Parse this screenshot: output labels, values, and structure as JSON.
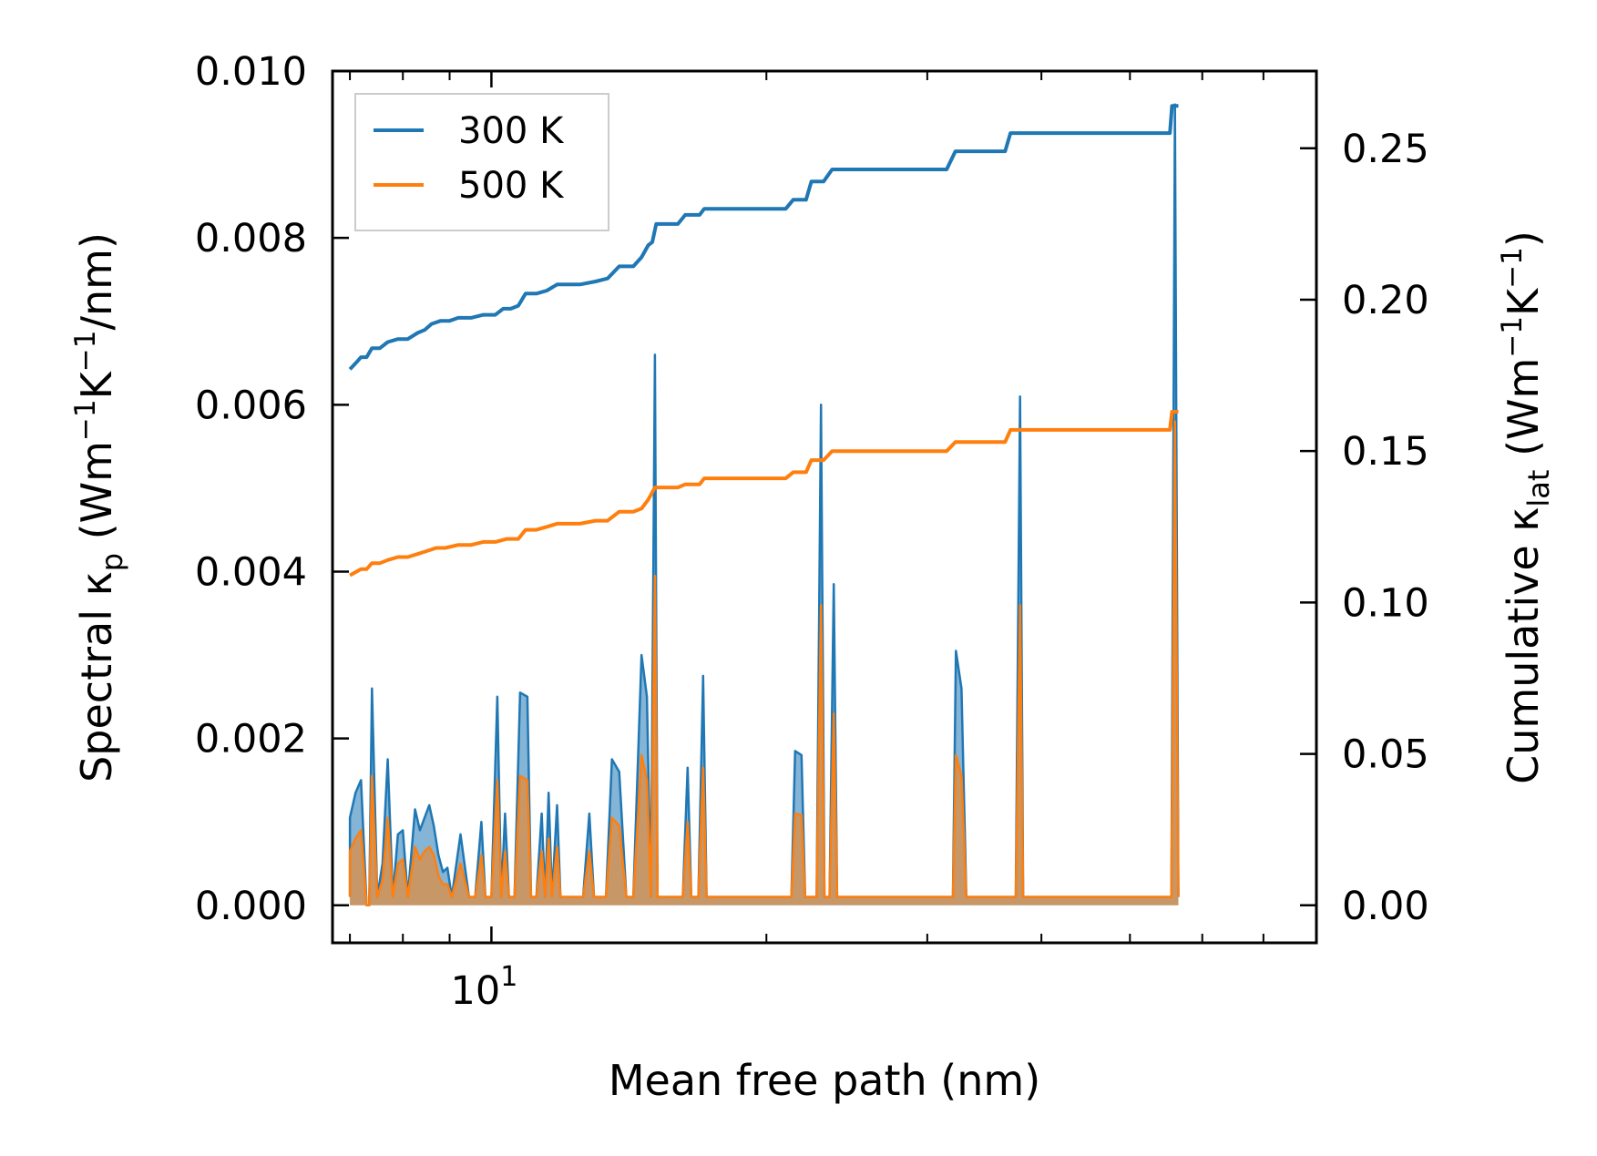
{
  "chart_data": {
    "type": "line",
    "xlabel": "Mean free path (nm)",
    "ylabel": {
      "main": "Spectral κ",
      "sub": "p",
      "unit_open": " (Wm",
      "exp1": "−1",
      "unit_mid": "K",
      "exp2": "−1",
      "unit_close": "/nm)"
    },
    "ylabel_right": {
      "main": "Cumulative κ",
      "sub": "lat",
      "unit_open": " (Wm",
      "exp1": "−1",
      "unit_mid": "K",
      "exp2": "−1",
      "unit_close": ")"
    },
    "x_scale": "log",
    "xlim": [
      6.7,
      80
    ],
    "ylim": [
      -0.00045,
      0.01
    ],
    "y2lim": [
      -0.0124,
      0.2755
    ],
    "x_ticks": [
      {
        "value": 10,
        "base": "10",
        "exp": "1"
      }
    ],
    "x_minor_ticks": [
      7,
      8,
      9,
      20,
      30,
      40,
      50,
      60,
      70,
      80
    ],
    "y_ticks": [
      {
        "value": 0.0,
        "label": "0.000"
      },
      {
        "value": 0.002,
        "label": "0.002"
      },
      {
        "value": 0.004,
        "label": "0.004"
      },
      {
        "value": 0.006,
        "label": "0.006"
      },
      {
        "value": 0.008,
        "label": "0.008"
      },
      {
        "value": 0.01,
        "label": "0.010"
      }
    ],
    "y2_ticks": [
      {
        "value": 0.0,
        "label": "0.00"
      },
      {
        "value": 0.05,
        "label": "0.05"
      },
      {
        "value": 0.1,
        "label": "0.10"
      },
      {
        "value": 0.15,
        "label": "0.15"
      },
      {
        "value": 0.2,
        "label": "0.20"
      },
      {
        "value": 0.25,
        "label": "0.25"
      }
    ],
    "legend": {
      "location": "upper-left",
      "entries": [
        {
          "label": "300 K",
          "color": "#1f77b4"
        },
        {
          "label": "500 K",
          "color": "#ff7f0e"
        }
      ]
    },
    "spectral_series": [
      {
        "name": "300 K",
        "color": "#1f77b4",
        "points": [
          [
            7.0,
            0.0001
          ],
          [
            7.0,
            0.00105
          ],
          [
            7.1,
            0.00135
          ],
          [
            7.2,
            0.0015
          ],
          [
            7.3,
            0
          ],
          [
            7.35,
            0
          ],
          [
            7.4,
            0.0026
          ],
          [
            7.5,
            0.0001
          ],
          [
            7.6,
            0.0005
          ],
          [
            7.7,
            0.00175
          ],
          [
            7.8,
            0.0001
          ],
          [
            7.9,
            0.00085
          ],
          [
            8.0,
            0.0009
          ],
          [
            8.1,
            0.0001
          ],
          [
            8.25,
            0.00115
          ],
          [
            8.35,
            0.0009
          ],
          [
            8.45,
            0.00105
          ],
          [
            8.55,
            0.0012
          ],
          [
            8.65,
            0.00095
          ],
          [
            8.75,
            0.0006
          ],
          [
            8.85,
            0.0004
          ],
          [
            8.95,
            0.00045
          ],
          [
            9.05,
            0.0001
          ],
          [
            9.25,
            0.00085
          ],
          [
            9.45,
            0.0001
          ],
          [
            9.6,
            0.0001
          ],
          [
            9.75,
            0.001
          ],
          [
            9.85,
            0.0001
          ],
          [
            10.0,
            0.0001
          ],
          [
            10.15,
            0.0025
          ],
          [
            10.25,
            0.0001
          ],
          [
            10.35,
            0.0011
          ],
          [
            10.45,
            0.0001
          ],
          [
            10.6,
            0.0001
          ],
          [
            10.75,
            0.00255
          ],
          [
            10.95,
            0.0025
          ],
          [
            11.05,
            0.0001
          ],
          [
            11.2,
            0.0001
          ],
          [
            11.35,
            0.0011
          ],
          [
            11.45,
            0.0001
          ],
          [
            11.55,
            0.00135
          ],
          [
            11.65,
            0.0001
          ],
          [
            11.8,
            0.0012
          ],
          [
            11.9,
            0.0001
          ],
          [
            12.0,
            0.0001
          ],
          [
            12.6,
            0.0001
          ],
          [
            12.8,
            0.0011
          ],
          [
            12.95,
            0.0001
          ],
          [
            13.35,
            0.0001
          ],
          [
            13.55,
            0.00175
          ],
          [
            13.8,
            0.0016
          ],
          [
            14.05,
            0.0001
          ],
          [
            14.3,
            0.0001
          ],
          [
            14.6,
            0.003
          ],
          [
            14.8,
            0.0025
          ],
          [
            14.95,
            0.0001
          ],
          [
            15.1,
            0.0066
          ],
          [
            15.2,
            0.0001
          ],
          [
            16.2,
            0.0001
          ],
          [
            16.4,
            0.00165
          ],
          [
            16.55,
            0.0001
          ],
          [
            16.85,
            0.0001
          ],
          [
            17.05,
            0.00275
          ],
          [
            17.2,
            0.0001
          ],
          [
            21.3,
            0.0001
          ],
          [
            21.5,
            0.00185
          ],
          [
            21.85,
            0.0018
          ],
          [
            22.05,
            0.0001
          ],
          [
            22.7,
            0.0001
          ],
          [
            22.95,
            0.006
          ],
          [
            23.15,
            0.0001
          ],
          [
            23.45,
            0.0001
          ],
          [
            23.7,
            0.00385
          ],
          [
            23.9,
            0.0001
          ],
          [
            32.0,
            0.0001
          ],
          [
            32.25,
            0.00305
          ],
          [
            32.7,
            0.0026
          ],
          [
            33.1,
            0.0001
          ],
          [
            37.5,
            0.0001
          ],
          [
            37.9,
            0.0061
          ],
          [
            38.2,
            0.0001
          ],
          [
            55.5,
            0.0001
          ],
          [
            56.0,
            0.0096
          ],
          [
            56.5,
            0.0001
          ]
        ]
      },
      {
        "name": "500 K",
        "color": "#ff7f0e",
        "points": [
          [
            7.0,
            0.0001
          ],
          [
            7.0,
            0.00065
          ],
          [
            7.1,
            0.0008
          ],
          [
            7.2,
            0.0009
          ],
          [
            7.3,
            0
          ],
          [
            7.35,
            0
          ],
          [
            7.4,
            0.00155
          ],
          [
            7.5,
            0.0001
          ],
          [
            7.6,
            0.0003
          ],
          [
            7.7,
            0.00105
          ],
          [
            7.8,
            0.0001
          ],
          [
            7.9,
            0.0005
          ],
          [
            8.0,
            0.00055
          ],
          [
            8.1,
            0.0001
          ],
          [
            8.25,
            0.0007
          ],
          [
            8.35,
            0.00055
          ],
          [
            8.45,
            0.00065
          ],
          [
            8.55,
            0.0007
          ],
          [
            8.65,
            0.0006
          ],
          [
            8.75,
            0.00035
          ],
          [
            8.85,
            0.00025
          ],
          [
            8.95,
            0.00025
          ],
          [
            9.05,
            0.0001
          ],
          [
            9.25,
            0.0005
          ],
          [
            9.45,
            0.0001
          ],
          [
            9.6,
            0.0001
          ],
          [
            9.75,
            0.0006
          ],
          [
            9.85,
            0.0001
          ],
          [
            10.0,
            0.0001
          ],
          [
            10.15,
            0.0015
          ],
          [
            10.25,
            0.0001
          ],
          [
            10.35,
            0.00065
          ],
          [
            10.45,
            0.0001
          ],
          [
            10.6,
            0.0001
          ],
          [
            10.75,
            0.00155
          ],
          [
            10.95,
            0.0015
          ],
          [
            11.05,
            0.0001
          ],
          [
            11.2,
            0.0001
          ],
          [
            11.35,
            0.00065
          ],
          [
            11.45,
            0.0001
          ],
          [
            11.55,
            0.0008
          ],
          [
            11.65,
            0.0001
          ],
          [
            11.8,
            0.0007
          ],
          [
            11.9,
            0.0001
          ],
          [
            12.0,
            0.0001
          ],
          [
            12.6,
            0.0001
          ],
          [
            12.8,
            0.00065
          ],
          [
            12.95,
            0.0001
          ],
          [
            13.35,
            0.0001
          ],
          [
            13.55,
            0.00105
          ],
          [
            13.8,
            0.00095
          ],
          [
            14.05,
            0.0001
          ],
          [
            14.3,
            0.0001
          ],
          [
            14.6,
            0.0018
          ],
          [
            14.8,
            0.0015
          ],
          [
            14.95,
            0.0001
          ],
          [
            15.1,
            0.00395
          ],
          [
            15.2,
            0.0001
          ],
          [
            16.2,
            0.0001
          ],
          [
            16.4,
            0.001
          ],
          [
            16.55,
            0.0001
          ],
          [
            16.85,
            0.0001
          ],
          [
            17.05,
            0.00165
          ],
          [
            17.2,
            0.0001
          ],
          [
            21.3,
            0.0001
          ],
          [
            21.5,
            0.0011
          ],
          [
            21.85,
            0.00108
          ],
          [
            22.05,
            0.0001
          ],
          [
            22.7,
            0.0001
          ],
          [
            22.95,
            0.0036
          ],
          [
            23.15,
            0.0001
          ],
          [
            23.45,
            0.0001
          ],
          [
            23.7,
            0.0023
          ],
          [
            23.9,
            0.0001
          ],
          [
            32.0,
            0.0001
          ],
          [
            32.25,
            0.0018
          ],
          [
            32.7,
            0.00155
          ],
          [
            33.1,
            0.0001
          ],
          [
            37.5,
            0.0001
          ],
          [
            37.9,
            0.0036
          ],
          [
            38.2,
            0.0001
          ],
          [
            55.5,
            0.0001
          ],
          [
            56.0,
            0.0058
          ],
          [
            56.5,
            0.0001
          ]
        ]
      }
    ],
    "cumulative_series": [
      {
        "name": "300 K",
        "color": "#1f77b4",
        "points": [
          [
            7.0,
            0.177
          ],
          [
            7.1,
            0.179
          ],
          [
            7.2,
            0.181
          ],
          [
            7.3,
            0.181
          ],
          [
            7.4,
            0.184
          ],
          [
            7.55,
            0.184
          ],
          [
            7.7,
            0.186
          ],
          [
            7.9,
            0.187
          ],
          [
            8.1,
            0.187
          ],
          [
            8.3,
            0.189
          ],
          [
            8.45,
            0.19
          ],
          [
            8.6,
            0.192
          ],
          [
            8.8,
            0.193
          ],
          [
            9.0,
            0.193
          ],
          [
            9.2,
            0.194
          ],
          [
            9.5,
            0.194
          ],
          [
            9.8,
            0.195
          ],
          [
            10.1,
            0.195
          ],
          [
            10.3,
            0.197
          ],
          [
            10.5,
            0.197
          ],
          [
            10.7,
            0.198
          ],
          [
            10.9,
            0.202
          ],
          [
            11.2,
            0.202
          ],
          [
            11.5,
            0.203
          ],
          [
            11.8,
            0.205
          ],
          [
            12.5,
            0.205
          ],
          [
            13.0,
            0.206
          ],
          [
            13.4,
            0.207
          ],
          [
            13.8,
            0.211
          ],
          [
            14.3,
            0.211
          ],
          [
            14.6,
            0.214
          ],
          [
            14.85,
            0.218
          ],
          [
            15.0,
            0.219
          ],
          [
            15.15,
            0.225
          ],
          [
            16.0,
            0.225
          ],
          [
            16.3,
            0.228
          ],
          [
            16.9,
            0.228
          ],
          [
            17.1,
            0.23
          ],
          [
            21.0,
            0.23
          ],
          [
            21.4,
            0.233
          ],
          [
            22.1,
            0.233
          ],
          [
            22.4,
            0.239
          ],
          [
            23.1,
            0.239
          ],
          [
            23.6,
            0.243
          ],
          [
            31.5,
            0.243
          ],
          [
            32.2,
            0.249
          ],
          [
            36.5,
            0.249
          ],
          [
            37.0,
            0.255
          ],
          [
            55.3,
            0.255
          ],
          [
            55.6,
            0.264
          ],
          [
            56.5,
            0.264
          ]
        ]
      },
      {
        "name": "500 K",
        "color": "#ff7f0e",
        "points": [
          [
            7.0,
            0.109
          ],
          [
            7.1,
            0.11
          ],
          [
            7.2,
            0.111
          ],
          [
            7.3,
            0.111
          ],
          [
            7.4,
            0.113
          ],
          [
            7.55,
            0.113
          ],
          [
            7.7,
            0.114
          ],
          [
            7.9,
            0.115
          ],
          [
            8.1,
            0.115
          ],
          [
            8.3,
            0.116
          ],
          [
            8.5,
            0.117
          ],
          [
            8.7,
            0.118
          ],
          [
            8.9,
            0.118
          ],
          [
            9.2,
            0.119
          ],
          [
            9.5,
            0.119
          ],
          [
            9.8,
            0.12
          ],
          [
            10.1,
            0.12
          ],
          [
            10.4,
            0.121
          ],
          [
            10.7,
            0.121
          ],
          [
            10.9,
            0.124
          ],
          [
            11.2,
            0.124
          ],
          [
            11.5,
            0.125
          ],
          [
            11.8,
            0.126
          ],
          [
            12.5,
            0.126
          ],
          [
            13.0,
            0.127
          ],
          [
            13.4,
            0.127
          ],
          [
            13.8,
            0.13
          ],
          [
            14.3,
            0.13
          ],
          [
            14.6,
            0.131
          ],
          [
            14.85,
            0.134
          ],
          [
            15.1,
            0.138
          ],
          [
            16.0,
            0.138
          ],
          [
            16.3,
            0.139
          ],
          [
            16.9,
            0.139
          ],
          [
            17.1,
            0.141
          ],
          [
            21.0,
            0.141
          ],
          [
            21.4,
            0.143
          ],
          [
            22.1,
            0.143
          ],
          [
            22.4,
            0.147
          ],
          [
            23.1,
            0.147
          ],
          [
            23.6,
            0.15
          ],
          [
            31.5,
            0.15
          ],
          [
            32.2,
            0.153
          ],
          [
            36.5,
            0.153
          ],
          [
            37.0,
            0.157
          ],
          [
            55.3,
            0.157
          ],
          [
            55.6,
            0.163
          ],
          [
            56.5,
            0.163
          ]
        ]
      }
    ]
  }
}
